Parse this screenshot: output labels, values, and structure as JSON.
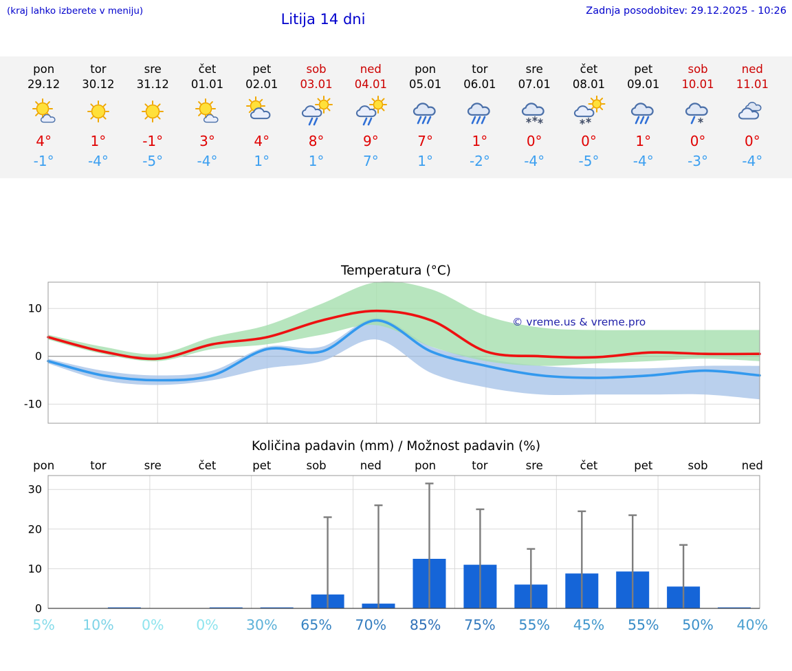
{
  "header": {
    "left_note": "(kraj lahko izberete v meniju)",
    "title": "Litija 14 dni",
    "update": "Zadnja posodobitev: 29.12.2025 - 10:26"
  },
  "colors": {
    "header_blue": "#0000cc",
    "tmax_red": "#e00000",
    "tmin_blue": "#3b9ff0",
    "weekend_red": "#cc0000",
    "bar_blue": "#1565d8",
    "whisker_gray": "#7d7d7d",
    "line_red": "#ee1111",
    "line_blue": "#3399ee",
    "band_green": "#a5dfae",
    "band_blue": "#a9c4e8",
    "prob_low": "#8ee4ee",
    "prob_mid": "#3a8fc9",
    "prob_high": "#2a62b0",
    "strip_bg": "#f3f3f3",
    "watermark_blue": "#2222aa"
  },
  "forecast": {
    "days": [
      {
        "day": "pon",
        "date": "29.12",
        "weekend": false,
        "icon": "sun-small-cloud",
        "tmax": "4°",
        "tmin": "-1°"
      },
      {
        "day": "tor",
        "date": "30.12",
        "weekend": false,
        "icon": "sunny",
        "tmax": "1°",
        "tmin": "-4°"
      },
      {
        "day": "sre",
        "date": "31.12",
        "weekend": false,
        "icon": "sunny",
        "tmax": "-1°",
        "tmin": "-5°"
      },
      {
        "day": "čet",
        "date": "01.01",
        "weekend": false,
        "icon": "sun-small-cloud",
        "tmax": "3°",
        "tmin": "-4°"
      },
      {
        "day": "pet",
        "date": "02.01",
        "weekend": false,
        "icon": "sun-cloud",
        "tmax": "4°",
        "tmin": "1°"
      },
      {
        "day": "sob",
        "date": "03.01",
        "weekend": true,
        "icon": "sun-cloud-rain",
        "tmax": "8°",
        "tmin": "1°"
      },
      {
        "day": "ned",
        "date": "04.01",
        "weekend": true,
        "icon": "sun-cloud-rain",
        "tmax": "9°",
        "tmin": "7°"
      },
      {
        "day": "pon",
        "date": "05.01",
        "weekend": false,
        "icon": "cloud-rain",
        "tmax": "7°",
        "tmin": "1°"
      },
      {
        "day": "tor",
        "date": "06.01",
        "weekend": false,
        "icon": "cloud-rain",
        "tmax": "1°",
        "tmin": "-2°"
      },
      {
        "day": "sre",
        "date": "07.01",
        "weekend": false,
        "icon": "cloud-snow",
        "tmax": "0°",
        "tmin": "-4°"
      },
      {
        "day": "čet",
        "date": "08.01",
        "weekend": false,
        "icon": "sun-cloud-snow",
        "tmax": "0°",
        "tmin": "-5°"
      },
      {
        "day": "pet",
        "date": "09.01",
        "weekend": false,
        "icon": "cloud-rain",
        "tmax": "1°",
        "tmin": "-4°"
      },
      {
        "day": "sob",
        "date": "10.01",
        "weekend": true,
        "icon": "cloud-sleet",
        "tmax": "0°",
        "tmin": "-3°"
      },
      {
        "day": "ned",
        "date": "11.01",
        "weekend": true,
        "icon": "cloudy",
        "tmax": "0°",
        "tmin": "-4°"
      }
    ]
  },
  "chart_data": [
    {
      "type": "line",
      "title": "Temperatura (°C)",
      "categories": [
        "pon",
        "tor",
        "sre",
        "čet",
        "pet",
        "sob",
        "ned",
        "pon",
        "tor",
        "sre",
        "čet",
        "pet",
        "sob",
        "ned"
      ],
      "series": [
        {
          "name": "tmax",
          "color": "#ee1111",
          "values": [
            4,
            1,
            -0.5,
            2.5,
            4,
            7.5,
            9.5,
            7.5,
            1,
            0,
            -0.2,
            0.8,
            0.5,
            0.5
          ]
        },
        {
          "name": "tmin",
          "color": "#3399ee",
          "values": [
            -1,
            -4,
            -5,
            -4,
            1.5,
            1,
            7.5,
            1,
            -2,
            -4,
            -4.5,
            -4,
            -3,
            -4
          ]
        }
      ],
      "bands": [
        {
          "name": "tmax-range",
          "color": "#a5dfae",
          "upper": [
            4.5,
            2,
            0.5,
            4,
            6.5,
            11,
            15.5,
            14,
            8.5,
            6,
            5.5,
            5.5,
            5.5,
            5.5
          ],
          "lower": [
            3.5,
            0.5,
            -1,
            1.5,
            2.5,
            4.5,
            6.5,
            2,
            -1,
            -2,
            -1.5,
            -1,
            -0.5,
            -1
          ]
        },
        {
          "name": "tmin-range",
          "color": "#a9c4e8",
          "upper": [
            -0.5,
            -3,
            -4,
            -3,
            2,
            2,
            8,
            2,
            -0.5,
            -2,
            -2.5,
            -2.5,
            -2,
            -2
          ],
          "lower": [
            -1.5,
            -5,
            -6,
            -5,
            -2.5,
            -1,
            3.5,
            -3.5,
            -6.5,
            -8,
            -8,
            -8,
            -8,
            -9
          ]
        }
      ],
      "ylim": [
        -14,
        15.5
      ],
      "yticks": [
        -10,
        0,
        10
      ],
      "grid": true,
      "legend": "none",
      "watermark": "© vreme.us & vreme.pro"
    },
    {
      "type": "bar",
      "title": "Količina padavin (mm) / Možnost padavin (%)",
      "categories": [
        "pon",
        "tor",
        "sre",
        "čet",
        "pet",
        "sob",
        "ned",
        "pon",
        "tor",
        "sre",
        "čet",
        "pet",
        "sob",
        "ned"
      ],
      "values": [
        0,
        0.15,
        0,
        0.15,
        0.2,
        3.5,
        1.2,
        12.5,
        11,
        6,
        8.8,
        9.3,
        5.5,
        0.15
      ],
      "whiskers": [
        0,
        0,
        0,
        0,
        0,
        23,
        26,
        31.5,
        25,
        15,
        24.5,
        23.5,
        16,
        0
      ],
      "probabilities": [
        "5%",
        "10%",
        "0%",
        "0%",
        "30%",
        "65%",
        "70%",
        "85%",
        "75%",
        "55%",
        "45%",
        "55%",
        "50%",
        "40%"
      ],
      "ylim": [
        0,
        33.5
      ],
      "yticks": [
        0,
        10,
        20,
        30
      ],
      "grid": true,
      "legend": "none"
    }
  ]
}
